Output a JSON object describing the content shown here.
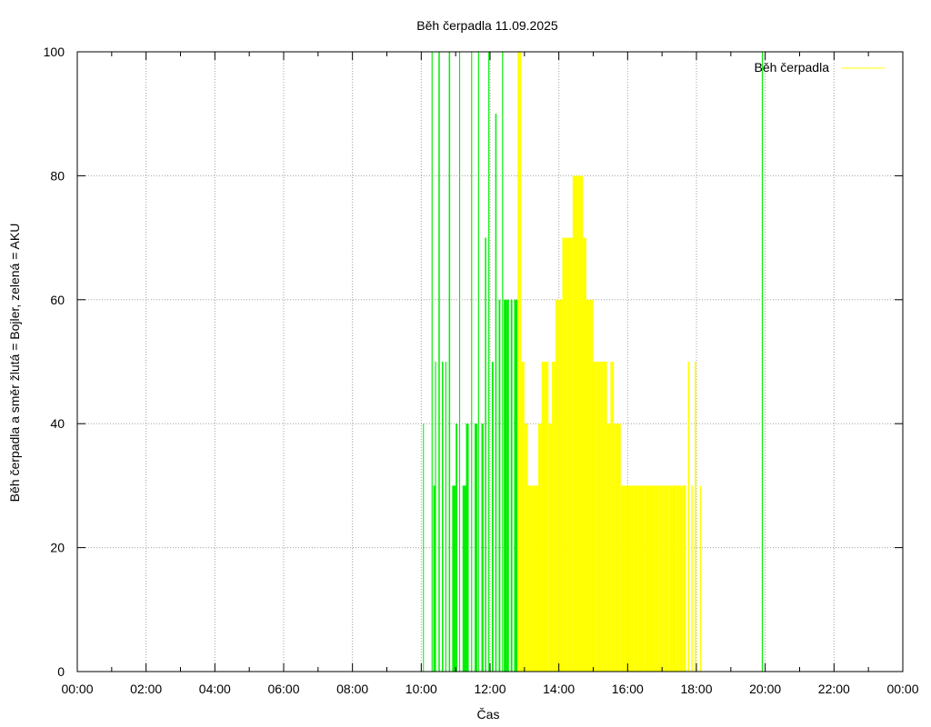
{
  "chart_data": {
    "type": "bar",
    "title": "Běh čerpadla 11.09.2025",
    "xlabel": "Čas",
    "ylabel": "Běh čerpadla a směr žlutá = Bojler, zelená = AKU",
    "xlim": [
      0,
      24
    ],
    "ylim": [
      0,
      100
    ],
    "x_ticks": [
      "00:00",
      "02:00",
      "04:00",
      "06:00",
      "08:00",
      "10:00",
      "12:00",
      "14:00",
      "16:00",
      "18:00",
      "20:00",
      "22:00",
      "00:00"
    ],
    "y_ticks": [
      "0",
      "20",
      "40",
      "60",
      "80",
      "100"
    ],
    "grid": true,
    "legend": {
      "position": "top-right",
      "entries": [
        {
          "label": "Běh čerpadla",
          "color": "#ffff00"
        }
      ]
    },
    "colors": {
      "boiler": "#ffff00",
      "aku": "#00ee00"
    },
    "series": [
      {
        "direction": "AKU",
        "color": "#00ee00",
        "x_hours": [
          10.05,
          10.08,
          10.3,
          10.35,
          10.4,
          10.5,
          10.6,
          10.7,
          10.8,
          10.9,
          11.0,
          11.1,
          11.2,
          11.3,
          11.45,
          11.55,
          11.65,
          11.75,
          11.85,
          11.95,
          12.05,
          12.15,
          12.25,
          12.35,
          12.4,
          12.45,
          12.5,
          12.6,
          12.7,
          19.9
        ],
        "values": [
          40,
          0,
          100,
          30,
          50,
          100,
          50,
          50,
          100,
          30,
          40,
          100,
          30,
          40,
          100,
          40,
          100,
          40,
          70,
          100,
          50,
          90,
          60,
          100,
          60,
          60,
          60,
          60,
          60,
          100
        ],
        "widths_hours": [
          0.02,
          0.02,
          0.03,
          0.05,
          0.03,
          0.04,
          0.04,
          0.03,
          0.04,
          0.1,
          0.05,
          0.03,
          0.1,
          0.08,
          0.03,
          0.08,
          0.03,
          0.06,
          0.04,
          0.03,
          0.05,
          0.04,
          0.05,
          0.03,
          0.05,
          0.05,
          0.05,
          0.05,
          0.1,
          0.03
        ]
      },
      {
        "direction": "Bojler",
        "color": "#ffff00",
        "x_hours": [
          12.8,
          12.9,
          13.0,
          13.1,
          13.2,
          13.3,
          13.4,
          13.5,
          13.6,
          13.7,
          13.8,
          13.9,
          14.0,
          14.1,
          14.2,
          14.3,
          14.4,
          14.5,
          14.6,
          14.7,
          14.8,
          14.9,
          15.0,
          15.1,
          15.2,
          15.3,
          15.4,
          15.5,
          15.6,
          15.7,
          15.8,
          15.9,
          16.0,
          16.1,
          16.2,
          16.3,
          16.4,
          16.5,
          16.6,
          16.7,
          16.8,
          16.9,
          17.0,
          17.1,
          17.2,
          17.3,
          17.4,
          17.5,
          17.6,
          17.75,
          17.85,
          17.95,
          18.1
        ],
        "values": [
          100,
          50,
          40,
          30,
          30,
          30,
          40,
          50,
          50,
          40,
          50,
          60,
          60,
          70,
          70,
          70,
          80,
          80,
          80,
          70,
          60,
          60,
          50,
          50,
          50,
          50,
          40,
          50,
          40,
          40,
          30,
          30,
          30,
          30,
          30,
          30,
          30,
          30,
          30,
          30,
          30,
          30,
          30,
          30,
          30,
          30,
          30,
          30,
          30,
          50,
          30,
          50,
          30
        ],
        "widths_hours": [
          0.1,
          0.1,
          0.1,
          0.1,
          0.1,
          0.1,
          0.1,
          0.1,
          0.1,
          0.1,
          0.1,
          0.1,
          0.1,
          0.1,
          0.1,
          0.1,
          0.1,
          0.1,
          0.1,
          0.1,
          0.1,
          0.1,
          0.1,
          0.1,
          0.1,
          0.1,
          0.1,
          0.1,
          0.1,
          0.1,
          0.1,
          0.1,
          0.1,
          0.1,
          0.1,
          0.1,
          0.1,
          0.1,
          0.1,
          0.1,
          0.1,
          0.1,
          0.1,
          0.1,
          0.1,
          0.1,
          0.1,
          0.1,
          0.1,
          0.04,
          0.04,
          0.04,
          0.04
        ]
      }
    ]
  }
}
